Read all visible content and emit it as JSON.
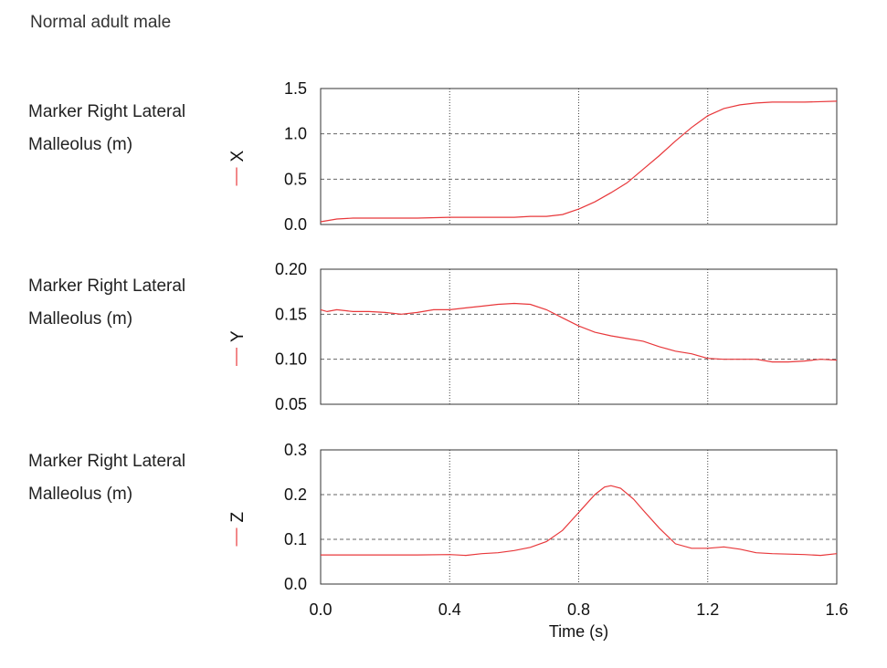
{
  "title": "Normal adult male",
  "x_axis": {
    "label": "Time (s)",
    "ticks": [
      "0.0",
      "0.4",
      "0.8",
      "1.2",
      "1.6"
    ],
    "range": [
      0,
      1.6
    ],
    "vgrid": [
      0.4,
      0.8,
      1.2
    ]
  },
  "line_color": "#e8383b",
  "chart_data": [
    {
      "type": "line",
      "panel_label": [
        "Marker Right Lateral",
        "Malleolus (m)"
      ],
      "series": [
        {
          "name": "X",
          "x": [
            0,
            0.05,
            0.1,
            0.2,
            0.3,
            0.4,
            0.45,
            0.5,
            0.55,
            0.6,
            0.65,
            0.7,
            0.75,
            0.8,
            0.85,
            0.9,
            0.95,
            1.0,
            1.05,
            1.1,
            1.15,
            1.2,
            1.25,
            1.3,
            1.35,
            1.4,
            1.5,
            1.6
          ],
          "y": [
            0.03,
            0.06,
            0.07,
            0.07,
            0.07,
            0.08,
            0.08,
            0.08,
            0.08,
            0.08,
            0.09,
            0.09,
            0.11,
            0.17,
            0.25,
            0.35,
            0.46,
            0.61,
            0.76,
            0.92,
            1.07,
            1.2,
            1.28,
            1.32,
            1.34,
            1.35,
            1.35,
            1.36
          ]
        }
      ],
      "yticks": [
        "0.0",
        "0.5",
        "1.0",
        "1.5"
      ],
      "ylim": [
        0,
        1.5
      ],
      "hgrid": [
        0.5,
        1.0
      ]
    },
    {
      "type": "line",
      "panel_label": [
        "Marker Right Lateral",
        "Malleolus (m)"
      ],
      "series": [
        {
          "name": "Y",
          "x": [
            0,
            0.02,
            0.05,
            0.1,
            0.15,
            0.2,
            0.25,
            0.3,
            0.35,
            0.4,
            0.45,
            0.5,
            0.55,
            0.6,
            0.65,
            0.7,
            0.75,
            0.8,
            0.85,
            0.9,
            0.95,
            1.0,
            1.05,
            1.1,
            1.15,
            1.2,
            1.25,
            1.3,
            1.35,
            1.4,
            1.45,
            1.5,
            1.55,
            1.6
          ],
          "y": [
            0.155,
            0.153,
            0.155,
            0.153,
            0.153,
            0.152,
            0.15,
            0.152,
            0.155,
            0.155,
            0.157,
            0.159,
            0.161,
            0.162,
            0.161,
            0.155,
            0.146,
            0.137,
            0.13,
            0.126,
            0.123,
            0.12,
            0.114,
            0.109,
            0.106,
            0.101,
            0.1,
            0.1,
            0.1,
            0.097,
            0.097,
            0.098,
            0.1,
            0.099
          ]
        }
      ],
      "yticks": [
        "0.05",
        "0.10",
        "0.15",
        "0.20"
      ],
      "ylim": [
        0.05,
        0.2
      ],
      "hgrid": [
        0.1,
        0.15
      ]
    },
    {
      "type": "line",
      "panel_label": [
        "Marker Right Lateral",
        "Malleolus (m)"
      ],
      "series": [
        {
          "name": "Z",
          "x": [
            0,
            0.1,
            0.2,
            0.3,
            0.4,
            0.45,
            0.5,
            0.55,
            0.6,
            0.65,
            0.7,
            0.75,
            0.8,
            0.85,
            0.88,
            0.9,
            0.93,
            0.97,
            1.0,
            1.05,
            1.1,
            1.15,
            1.2,
            1.25,
            1.3,
            1.35,
            1.4,
            1.5,
            1.55,
            1.6
          ],
          "y": [
            0.065,
            0.065,
            0.065,
            0.065,
            0.066,
            0.064,
            0.068,
            0.07,
            0.075,
            0.082,
            0.095,
            0.12,
            0.16,
            0.2,
            0.217,
            0.22,
            0.214,
            0.19,
            0.165,
            0.125,
            0.09,
            0.08,
            0.08,
            0.083,
            0.078,
            0.07,
            0.068,
            0.066,
            0.064,
            0.068
          ]
        }
      ],
      "yticks": [
        "0.0",
        "0.1",
        "0.2",
        "0.3"
      ],
      "ylim": [
        0,
        0.3
      ],
      "hgrid": [
        0.1,
        0.2
      ]
    }
  ]
}
